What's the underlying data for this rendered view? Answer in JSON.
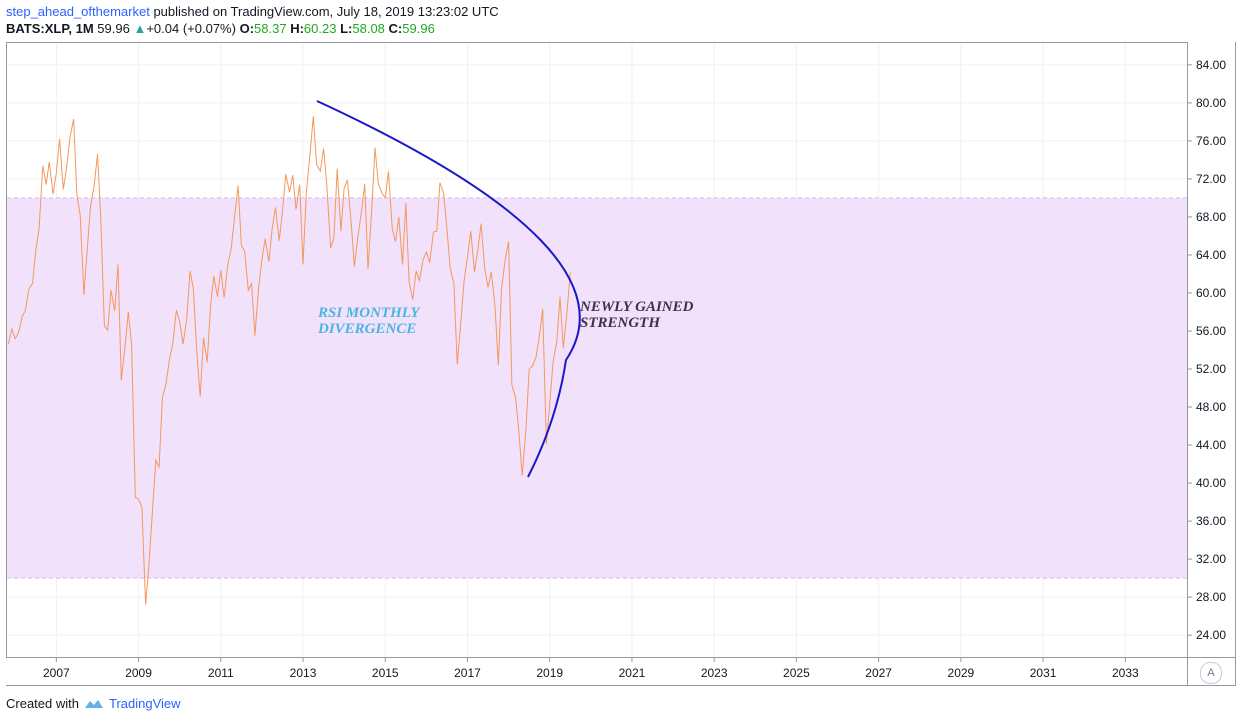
{
  "header": {
    "author": "step_ahead_ofthemarket",
    "published": "published on TradingView.com, July 18, 2019 13:23:02 UTC",
    "symbol": "BATS:XLP, 1M",
    "last": "59.96",
    "change": "+0.04 (+0.07%)",
    "o_label": "O:",
    "o_value": "58.37",
    "h_label": "H:",
    "h_value": "60.23",
    "l_label": "L:",
    "l_value": "58.08",
    "c_label": "C:",
    "c_value": "59.96"
  },
  "footer": {
    "created_with": "Created with",
    "brand": "TradingView"
  },
  "auto_button": "A",
  "colors": {
    "line": "#f4985c",
    "curve": "#1b18c8",
    "band": "#f1e1fb",
    "band_border": "#d9b7ef",
    "annotation_rsi": "#4bb6e0",
    "annotation_strength": "#3d3345",
    "grid": "#eef0f3",
    "up_arrow": "#26a69a"
  },
  "chart_data": {
    "type": "line",
    "x_ticks": [
      "2007",
      "2009",
      "2011",
      "2013",
      "2015",
      "2017",
      "2019",
      "2021",
      "2023",
      "2025",
      "2027",
      "2029",
      "2031",
      "2033"
    ],
    "y_ticks": [
      "84.00",
      "80.00",
      "76.00",
      "72.00",
      "68.00",
      "64.00",
      "60.00",
      "56.00",
      "52.00",
      "48.00",
      "44.00",
      "40.00",
      "36.00",
      "32.00",
      "28.00",
      "24.00"
    ],
    "xlim": [
      2005.8,
      2034.5
    ],
    "ylim": [
      21.7,
      86.3
    ],
    "band": [
      30,
      70
    ],
    "series": [
      {
        "values": [
          [
            2005.83,
            54.6
          ],
          [
            2005.92,
            56.2
          ],
          [
            2006.0,
            55.2
          ],
          [
            2006.08,
            55.8
          ],
          [
            2006.17,
            57.5
          ],
          [
            2006.25,
            58.2
          ],
          [
            2006.33,
            60.4
          ],
          [
            2006.42,
            61.0
          ],
          [
            2006.5,
            64.5
          ],
          [
            2006.58,
            66.8
          ],
          [
            2006.67,
            73.4
          ],
          [
            2006.75,
            71.4
          ],
          [
            2006.83,
            73.8
          ],
          [
            2006.92,
            70.4
          ],
          [
            2007.0,
            72.6
          ],
          [
            2007.08,
            76.2
          ],
          [
            2007.17,
            70.9
          ],
          [
            2007.25,
            73.2
          ],
          [
            2007.33,
            76.3
          ],
          [
            2007.42,
            78.3
          ],
          [
            2007.5,
            70.3
          ],
          [
            2007.58,
            68.2
          ],
          [
            2007.67,
            59.8
          ],
          [
            2007.75,
            64.5
          ],
          [
            2007.83,
            69.1
          ],
          [
            2007.92,
            71.3
          ],
          [
            2008.0,
            74.6
          ],
          [
            2008.08,
            68.0
          ],
          [
            2008.17,
            56.5
          ],
          [
            2008.25,
            56.1
          ],
          [
            2008.33,
            60.3
          ],
          [
            2008.42,
            58.1
          ],
          [
            2008.5,
            63.0
          ],
          [
            2008.58,
            50.8
          ],
          [
            2008.67,
            54.4
          ],
          [
            2008.75,
            58.0
          ],
          [
            2008.83,
            54.6
          ],
          [
            2008.92,
            38.5
          ],
          [
            2009.0,
            38.3
          ],
          [
            2009.08,
            37.5
          ],
          [
            2009.17,
            27.2
          ],
          [
            2009.25,
            31.2
          ],
          [
            2009.33,
            36.5
          ],
          [
            2009.42,
            42.4
          ],
          [
            2009.5,
            41.7
          ],
          [
            2009.58,
            49.0
          ],
          [
            2009.67,
            50.5
          ],
          [
            2009.75,
            53.0
          ],
          [
            2009.83,
            54.6
          ],
          [
            2009.92,
            58.2
          ],
          [
            2010.0,
            57.0
          ],
          [
            2010.08,
            54.6
          ],
          [
            2010.17,
            57.2
          ],
          [
            2010.25,
            62.3
          ],
          [
            2010.33,
            60.5
          ],
          [
            2010.42,
            53.5
          ],
          [
            2010.5,
            49.1
          ],
          [
            2010.58,
            55.3
          ],
          [
            2010.67,
            52.7
          ],
          [
            2010.75,
            58.6
          ],
          [
            2010.83,
            61.8
          ],
          [
            2010.92,
            59.6
          ],
          [
            2011.0,
            62.4
          ],
          [
            2011.08,
            59.5
          ],
          [
            2011.17,
            63.0
          ],
          [
            2011.25,
            64.6
          ],
          [
            2011.33,
            67.8
          ],
          [
            2011.42,
            71.3
          ],
          [
            2011.5,
            65.0
          ],
          [
            2011.58,
            64.4
          ],
          [
            2011.67,
            60.3
          ],
          [
            2011.75,
            61.0
          ],
          [
            2011.83,
            55.5
          ],
          [
            2011.92,
            60.5
          ],
          [
            2012.0,
            63.5
          ],
          [
            2012.08,
            65.7
          ],
          [
            2012.17,
            63.3
          ],
          [
            2012.25,
            66.8
          ],
          [
            2012.33,
            69.0
          ],
          [
            2012.42,
            65.5
          ],
          [
            2012.5,
            68.6
          ],
          [
            2012.58,
            72.5
          ],
          [
            2012.67,
            70.6
          ],
          [
            2012.75,
            72.4
          ],
          [
            2012.83,
            68.8
          ],
          [
            2012.92,
            71.4
          ],
          [
            2013.0,
            63.0
          ],
          [
            2013.08,
            70.5
          ],
          [
            2013.17,
            74.6
          ],
          [
            2013.25,
            78.6
          ],
          [
            2013.33,
            73.5
          ],
          [
            2013.42,
            72.8
          ],
          [
            2013.5,
            75.2
          ],
          [
            2013.58,
            71.2
          ],
          [
            2013.67,
            64.7
          ],
          [
            2013.75,
            65.8
          ],
          [
            2013.83,
            73.1
          ],
          [
            2013.92,
            66.5
          ],
          [
            2014.0,
            71.0
          ],
          [
            2014.08,
            71.9
          ],
          [
            2014.17,
            67.5
          ],
          [
            2014.25,
            62.8
          ],
          [
            2014.33,
            65.8
          ],
          [
            2014.42,
            68.5
          ],
          [
            2014.5,
            71.5
          ],
          [
            2014.58,
            62.5
          ],
          [
            2014.67,
            68.7
          ],
          [
            2014.75,
            75.3
          ],
          [
            2014.83,
            71.5
          ],
          [
            2014.92,
            70.5
          ],
          [
            2015.0,
            70.0
          ],
          [
            2015.08,
            72.8
          ],
          [
            2015.17,
            66.8
          ],
          [
            2015.25,
            65.4
          ],
          [
            2015.33,
            68.0
          ],
          [
            2015.42,
            63.0
          ],
          [
            2015.5,
            69.5
          ],
          [
            2015.58,
            61.2
          ],
          [
            2015.67,
            59.3
          ],
          [
            2015.75,
            62.3
          ],
          [
            2015.83,
            61.3
          ],
          [
            2015.92,
            63.5
          ],
          [
            2016.0,
            64.3
          ],
          [
            2016.08,
            63.2
          ],
          [
            2016.17,
            66.4
          ],
          [
            2016.25,
            66.5
          ],
          [
            2016.33,
            71.6
          ],
          [
            2016.42,
            70.5
          ],
          [
            2016.5,
            66.8
          ],
          [
            2016.58,
            62.6
          ],
          [
            2016.67,
            61.0
          ],
          [
            2016.75,
            52.5
          ],
          [
            2016.83,
            56.5
          ],
          [
            2016.92,
            61.4
          ],
          [
            2017.0,
            63.8
          ],
          [
            2017.08,
            66.5
          ],
          [
            2017.17,
            62.2
          ],
          [
            2017.25,
            64.5
          ],
          [
            2017.33,
            67.3
          ],
          [
            2017.42,
            62.5
          ],
          [
            2017.5,
            60.6
          ],
          [
            2017.58,
            62.2
          ],
          [
            2017.67,
            58.6
          ],
          [
            2017.75,
            52.4
          ],
          [
            2017.83,
            60.5
          ],
          [
            2017.92,
            63.6
          ],
          [
            2018.0,
            65.4
          ],
          [
            2018.08,
            50.3
          ],
          [
            2018.17,
            49.0
          ],
          [
            2018.25,
            45.4
          ],
          [
            2018.33,
            40.8
          ],
          [
            2018.42,
            45.6
          ],
          [
            2018.5,
            52.0
          ],
          [
            2018.58,
            52.3
          ],
          [
            2018.67,
            53.3
          ],
          [
            2018.75,
            55.5
          ],
          [
            2018.83,
            58.3
          ],
          [
            2018.92,
            44.1
          ],
          [
            2019.0,
            48.3
          ],
          [
            2019.08,
            52.7
          ],
          [
            2019.17,
            54.8
          ],
          [
            2019.25,
            59.6
          ],
          [
            2019.33,
            54.2
          ],
          [
            2019.42,
            58.0
          ],
          [
            2019.5,
            62.2
          ]
        ]
      }
    ]
  }
}
